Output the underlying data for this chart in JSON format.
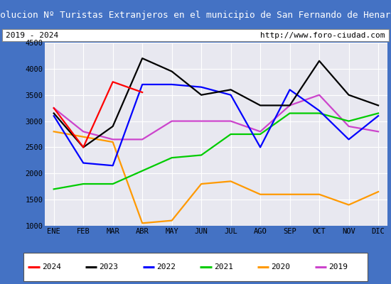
{
  "title": "Evolucion Nº Turistas Extranjeros en el municipio de San Fernando de Henares",
  "subtitle_left": "2019 - 2024",
  "subtitle_right": "http://www.foro-ciudad.com",
  "months": [
    "ENE",
    "FEB",
    "MAR",
    "ABR",
    "MAY",
    "JUN",
    "JUL",
    "AGO",
    "SEP",
    "OCT",
    "NOV",
    "DIC"
  ],
  "series": {
    "2024": [
      3250,
      2500,
      3750,
      3550,
      null,
      null,
      null,
      null,
      null,
      null,
      null,
      null
    ],
    "2023": [
      3150,
      2500,
      2900,
      4200,
      3950,
      3500,
      3600,
      3300,
      3300,
      4150,
      3500,
      3300
    ],
    "2022": [
      3100,
      2200,
      2150,
      3700,
      3700,
      3650,
      3500,
      2500,
      3600,
      3200,
      2650,
      3100
    ],
    "2021": [
      1700,
      1800,
      1800,
      2050,
      2300,
      2350,
      2750,
      2750,
      3150,
      3150,
      3000,
      3150
    ],
    "2020": [
      2800,
      2700,
      2600,
      1050,
      1100,
      1800,
      1850,
      1600,
      1600,
      1600,
      1400,
      1650
    ],
    "2019": [
      3250,
      2800,
      2650,
      2650,
      3000,
      3000,
      3000,
      2800,
      3300,
      3500,
      2900,
      2800
    ]
  },
  "colors": {
    "2024": "#ff0000",
    "2023": "#000000",
    "2022": "#0000ff",
    "2021": "#00cc00",
    "2020": "#ff9900",
    "2019": "#cc44cc"
  },
  "ylim": [
    1000,
    4500
  ],
  "yticks": [
    1000,
    1500,
    2000,
    2500,
    3000,
    3500,
    4000,
    4500
  ],
  "title_bg_color": "#4472c4",
  "title_font_color": "#ffffff",
  "plot_bg_color": "#e8e8f0",
  "grid_color": "#ffffff",
  "border_color": "#4472c4",
  "legend_order": [
    "2024",
    "2023",
    "2022",
    "2021",
    "2020",
    "2019"
  ]
}
